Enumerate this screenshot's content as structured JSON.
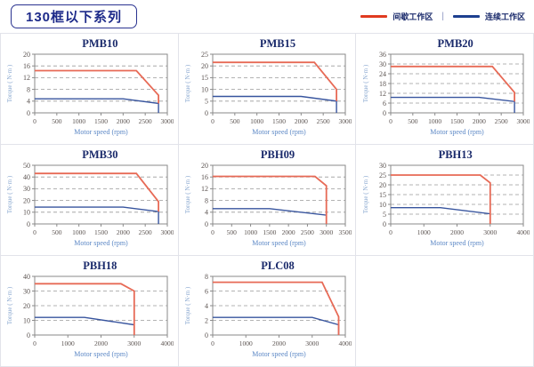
{
  "header": {
    "title": "130框以下系列",
    "legend": {
      "intermittent_label": "间歇工作区",
      "separator": "|",
      "continuous_label": "连续工作区",
      "intermittent_color": "#e03a20",
      "continuous_color": "#1d3f8f"
    }
  },
  "colors": {
    "red_line": "#e76a56",
    "blue_line": "#37549e",
    "grid_line": "#9a9a9a",
    "plot_border": "#8a8a8a",
    "tick_text": "#5b5350",
    "ylabel_text": "#8aa8d0",
    "xlabel_text": "#5b87c5",
    "title_text": "#1a2a6b"
  },
  "chart_data": [
    {
      "type": "line",
      "title": "PMB10",
      "xlabel": "Motor speed (rpm)",
      "ylabel": "Torque ( N·m )",
      "xlim": [
        0,
        3000
      ],
      "xtick_step": 500,
      "ylim": [
        0,
        20
      ],
      "ytick_step": 4,
      "grid": "dashed-horizontal",
      "legend_position": "none",
      "series": [
        {
          "name": "间歇工作区",
          "color_key": "red",
          "points": [
            [
              0,
              14.4
            ],
            [
              2300,
              14.4
            ],
            [
              2800,
              6
            ],
            [
              2800,
              3.2
            ]
          ]
        },
        {
          "name": "连续工作区",
          "color_key": "blue",
          "points": [
            [
              0,
              4.8
            ],
            [
              2000,
              4.8
            ],
            [
              2800,
              3.2
            ],
            [
              2800,
              0
            ]
          ]
        }
      ]
    },
    {
      "type": "line",
      "title": "PMB15",
      "xlabel": "Motor speed (rpm)",
      "ylabel": "Torque ( N·m )",
      "xlim": [
        0,
        3000
      ],
      "xtick_step": 500,
      "ylim": [
        0,
        25
      ],
      "ytick_step": 5,
      "grid": "dashed-horizontal",
      "legend_position": "none",
      "series": [
        {
          "name": "间歇工作区",
          "color_key": "red",
          "points": [
            [
              0,
              21.5
            ],
            [
              2300,
              21.5
            ],
            [
              2800,
              10
            ],
            [
              2800,
              5
            ]
          ]
        },
        {
          "name": "连续工作区",
          "color_key": "blue",
          "points": [
            [
              0,
              7
            ],
            [
              2000,
              7
            ],
            [
              2800,
              5
            ],
            [
              2800,
              0
            ]
          ]
        }
      ]
    },
    {
      "type": "line",
      "title": "PMB20",
      "xlabel": "Motor speed (rpm)",
      "ylabel": "Torque ( N·m )",
      "xlim": [
        0,
        3000
      ],
      "xtick_step": 500,
      "ylim": [
        0,
        36
      ],
      "ytick_step": 6,
      "grid": "dashed-horizontal",
      "legend_position": "none",
      "series": [
        {
          "name": "间歇工作区",
          "color_key": "red",
          "points": [
            [
              0,
              28.5
            ],
            [
              2300,
              28.5
            ],
            [
              2800,
              12.5
            ],
            [
              2800,
              7
            ]
          ]
        },
        {
          "name": "连续工作区",
          "color_key": "blue",
          "points": [
            [
              0,
              9.5
            ],
            [
              2000,
              9.5
            ],
            [
              2800,
              7
            ],
            [
              2800,
              0
            ]
          ]
        }
      ]
    },
    {
      "type": "line",
      "title": "PMB30",
      "xlabel": "Motor speed (rpm)",
      "ylabel": "Torque ( N·m )",
      "xlim": [
        0,
        3000
      ],
      "xtick_step": 500,
      "ylim": [
        0,
        50
      ],
      "ytick_step": 10,
      "grid": "dashed-horizontal",
      "legend_position": "none",
      "series": [
        {
          "name": "间歇工作区",
          "color_key": "red",
          "points": [
            [
              0,
              43
            ],
            [
              2300,
              43
            ],
            [
              2800,
              19
            ],
            [
              2800,
              10.5
            ]
          ]
        },
        {
          "name": "连续工作区",
          "color_key": "blue",
          "points": [
            [
              0,
              14.3
            ],
            [
              2000,
              14.3
            ],
            [
              2800,
              10.5
            ],
            [
              2800,
              0
            ]
          ]
        }
      ]
    },
    {
      "type": "line",
      "title": "PBH09",
      "xlabel": "Motor speed (rpm)",
      "ylabel": "Torque ( N·m )",
      "xlim": [
        0,
        3500
      ],
      "xtick_step": 500,
      "ylim": [
        0,
        20
      ],
      "ytick_step": 4,
      "grid": "dashed-horizontal",
      "legend_position": "none",
      "series": [
        {
          "name": "间歇工作区",
          "color_key": "red",
          "points": [
            [
              0,
              16.2
            ],
            [
              2700,
              16.2
            ],
            [
              3000,
              13
            ],
            [
              3000,
              0
            ]
          ]
        },
        {
          "name": "连续工作区",
          "color_key": "blue",
          "points": [
            [
              0,
              5.2
            ],
            [
              1500,
              5.2
            ],
            [
              3000,
              3
            ],
            [
              3000,
              0
            ]
          ]
        }
      ]
    },
    {
      "type": "line",
      "title": "PBH13",
      "xlabel": "Motor speed (rpm)",
      "ylabel": "Torque ( N·m )",
      "xlim": [
        0,
        4000
      ],
      "xtick_step": 1000,
      "ylim": [
        0,
        30
      ],
      "ytick_step": 5,
      "grid": "dashed-horizontal",
      "legend_position": "none",
      "series": [
        {
          "name": "间歇工作区",
          "color_key": "red",
          "points": [
            [
              0,
              25
            ],
            [
              2700,
              25
            ],
            [
              3000,
              21
            ],
            [
              3000,
              0
            ]
          ]
        },
        {
          "name": "连续工作区",
          "color_key": "blue",
          "points": [
            [
              0,
              8.3
            ],
            [
              1500,
              8.3
            ],
            [
              3000,
              5.2
            ],
            [
              3000,
              0
            ]
          ]
        }
      ]
    },
    {
      "type": "line",
      "title": "PBH18",
      "xlabel": "Motor speed (rpm)",
      "ylabel": "Torque ( N·m )",
      "xlim": [
        0,
        4000
      ],
      "xtick_step": 1000,
      "ylim": [
        0,
        40
      ],
      "ytick_step": 10,
      "grid": "dashed-horizontal",
      "legend_position": "none",
      "series": [
        {
          "name": "间歇工作区",
          "color_key": "red",
          "points": [
            [
              0,
              35
            ],
            [
              2600,
              35
            ],
            [
              3000,
              30
            ],
            [
              3000,
              0
            ]
          ]
        },
        {
          "name": "连续工作区",
          "color_key": "blue",
          "points": [
            [
              0,
              12
            ],
            [
              1500,
              12
            ],
            [
              3000,
              7
            ],
            [
              3000,
              0
            ]
          ]
        }
      ]
    },
    {
      "type": "line",
      "title": "PLC08",
      "xlabel": "Motor speed (rpm)",
      "ylabel": "Torque ( N·m )",
      "xlim": [
        0,
        4000
      ],
      "xtick_step": 1000,
      "ylim": [
        0,
        8
      ],
      "ytick_step": 2,
      "grid": "dashed-horizontal",
      "legend_position": "none",
      "series": [
        {
          "name": "间歇工作区",
          "color_key": "red",
          "points": [
            [
              0,
              7.2
            ],
            [
              3300,
              7.2
            ],
            [
              3800,
              2.5
            ],
            [
              3800,
              0
            ]
          ]
        },
        {
          "name": "连续工作区",
          "color_key": "blue",
          "points": [
            [
              0,
              2.4
            ],
            [
              3000,
              2.4
            ],
            [
              3800,
              1.4
            ],
            [
              3800,
              0
            ]
          ]
        }
      ]
    }
  ]
}
